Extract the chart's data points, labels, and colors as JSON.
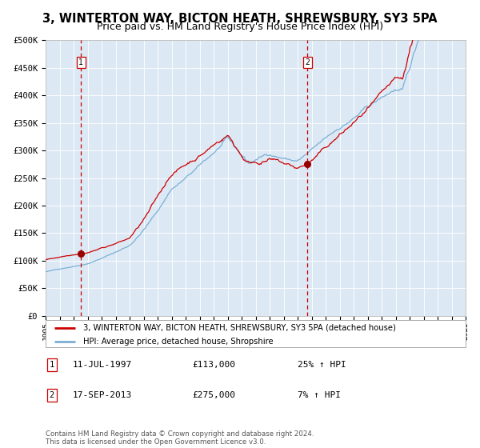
{
  "title": "3, WINTERTON WAY, BICTON HEATH, SHREWSBURY, SY3 5PA",
  "subtitle": "Price paid vs. HM Land Registry's House Price Index (HPI)",
  "title_fontsize": 10.5,
  "subtitle_fontsize": 9,
  "bg_color": "#dce9f5",
  "x_start_year": 1995,
  "x_end_year": 2025,
  "y_min": 0,
  "y_max": 500000,
  "y_ticks": [
    0,
    50000,
    100000,
    150000,
    200000,
    250000,
    300000,
    350000,
    400000,
    450000,
    500000
  ],
  "y_tick_labels": [
    "£0",
    "£50K",
    "£100K",
    "£150K",
    "£200K",
    "£250K",
    "£300K",
    "£350K",
    "£400K",
    "£450K",
    "£500K"
  ],
  "purchase1_year": 1997.53,
  "purchase1_value": 113000,
  "purchase1_label": "1",
  "purchase2_year": 2013.71,
  "purchase2_value": 275000,
  "purchase2_label": "2",
  "legend_line1": "3, WINTERTON WAY, BICTON HEATH, SHREWSBURY, SY3 5PA (detached house)",
  "legend_line2": "HPI: Average price, detached house, Shropshire",
  "note1_label": "1",
  "note1_date": "11-JUL-1997",
  "note1_price": "£113,000",
  "note1_hpi": "25% ↑ HPI",
  "note2_label": "2",
  "note2_date": "17-SEP-2013",
  "note2_price": "£275,000",
  "note2_hpi": "7% ↑ HPI",
  "footer": "Contains HM Land Registry data © Crown copyright and database right 2024.\nThis data is licensed under the Open Government Licence v3.0.",
  "red_line_color": "#cc0000",
  "blue_line_color": "#7aafd4",
  "vline_color": "#cc0000",
  "marker_color": "#990000"
}
